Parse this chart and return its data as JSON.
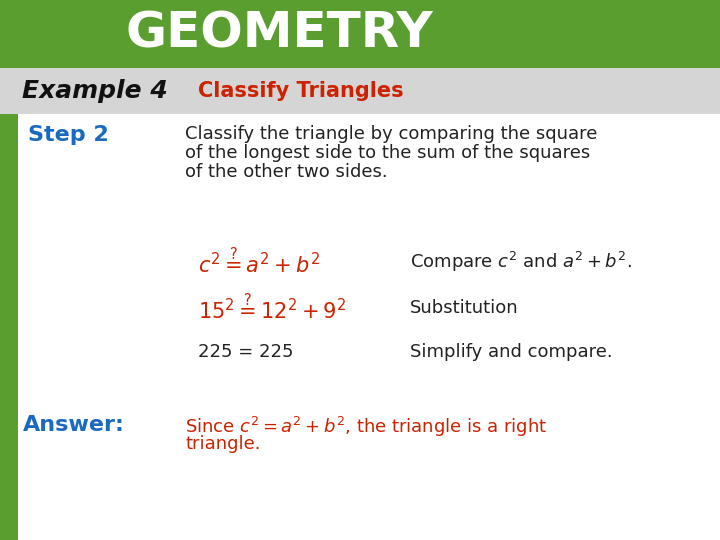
{
  "header_bg_color": "#5a9e2f",
  "header_text": "GEOMETRY",
  "header_text_color": "#ffffff",
  "header_font_size": 36,
  "example_label": "Example 4",
  "example_label_color": "#111111",
  "example_label_font_size": 18,
  "classify_triangles_title": "Classify Triangles",
  "classify_triangles_color": "#cc2200",
  "classify_triangles_font_size": 15,
  "body_bg_color": "#ffffff",
  "step2_label": "Step 2",
  "step2_color": "#1a6bbf",
  "step2_font_size": 16,
  "step2_text_line1": "Classify the triangle by comparing the square",
  "step2_text_line2": "of the longest side to the sum of the squares",
  "step2_text_line3": "of the other two sides.",
  "step2_text_color": "#222222",
  "step2_text_font_size": 13,
  "answer_label": "Answer:",
  "answer_label_color": "#1a6bbf",
  "answer_label_font_size": 16,
  "answer_text_color": "#cc2200",
  "answer_text_font_size": 13,
  "left_bar_color": "#5a9e2f"
}
